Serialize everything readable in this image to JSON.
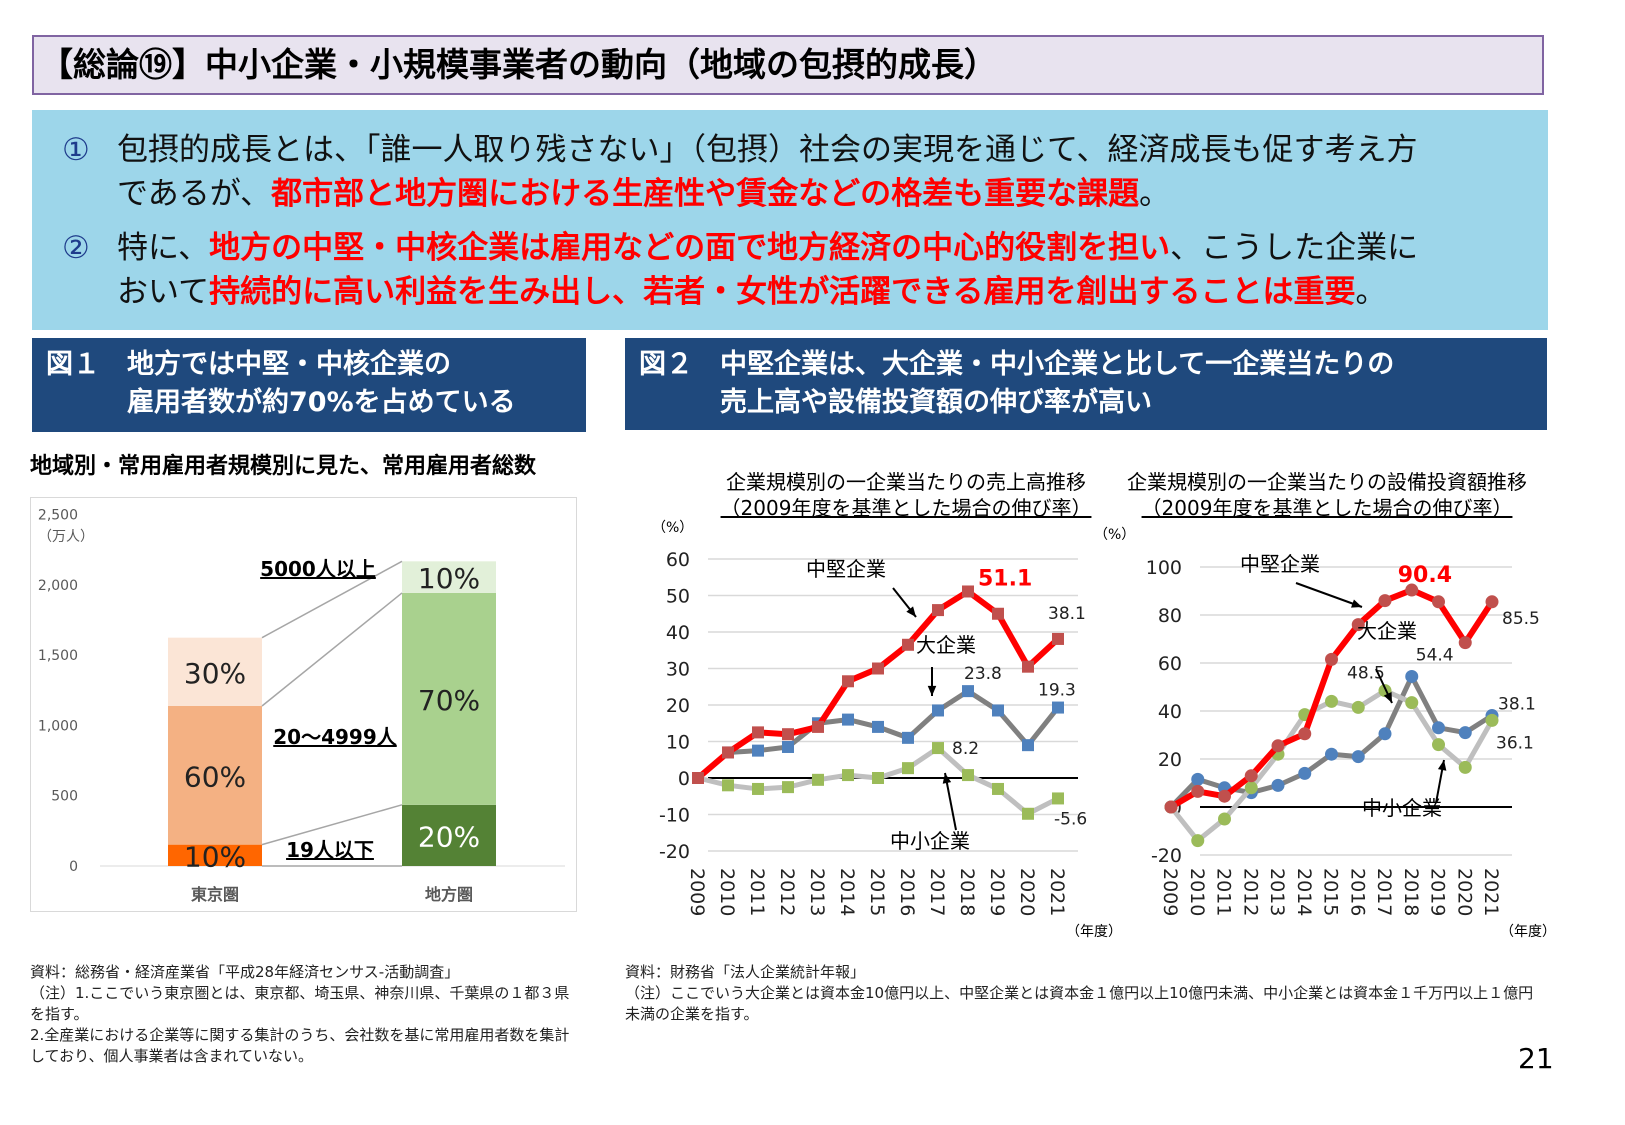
{
  "title": "【総論⑲】中小企業・小規模事業者の動向（地域の包摂的成長）",
  "intro": {
    "p1": {
      "num": "①",
      "line1": "包摂的成長とは、「誰一人取り残さない」（包摂）社会の実現を通じて、経済成長も促す考え方",
      "line2_pre": "であるが、",
      "line2_red": "都市部と地方圏における生産性や賃金などの格差も重要な課題",
      "line2_post": "。"
    },
    "p2": {
      "num": "②",
      "line1_pre": "特に、",
      "line1_red": "地方の中堅・中核企業は雇用などの面で地方経済の中心的役割を担い",
      "line1_post": "、こうした企業に",
      "line2_pre": "おいて",
      "line2_red": "持続的に高い利益を生み出し、若者・女性が活躍できる雇用を創出することは重要",
      "line2_post": "。"
    }
  },
  "fig1": {
    "header": "図１　地方では中堅・中核企業の\n　　　雇用者数が約70%を占めている",
    "subtitle": "地域別・常用雇用者規模別に見た、常用雇用者総数"
  },
  "fig2": {
    "header": "図２　中堅企業は、大企業・中小企業と比して一企業当たりの\n　　　売上高や設備投資額の伸び率が高い"
  },
  "colors": {
    "mid": "#ff0000",
    "mid_marker": "#c0504d",
    "large": "#808080",
    "large_marker": "#4f81bd",
    "sme": "#bfbfbf",
    "sme_marker": "#9bbb59",
    "navy": "#1f497d"
  },
  "chart_data": [
    {
      "type": "bar",
      "stacked": true,
      "ylabel": "（万人）",
      "ylim": [
        0,
        2500
      ],
      "yticks": [
        "0",
        "500",
        "1,000",
        "1,500",
        "2,000",
        "2,500"
      ],
      "categories": [
        "東京圏",
        "地方圏"
      ],
      "series": [
        {
          "name": "19人以下",
          "values": [
            152,
            435
          ],
          "labels": [
            "10%",
            "20%"
          ],
          "colors": [
            "#ff6600",
            "#548235"
          ]
        },
        {
          "name": "20～4999人",
          "values": [
            986,
            1507
          ],
          "labels": [
            "60%",
            "70%"
          ],
          "colors": [
            "#f4b183",
            "#a9d18e"
          ]
        },
        {
          "name": "5000人以上",
          "values": [
            486,
            225
          ],
          "labels": [
            "30%",
            "10%"
          ],
          "colors": [
            "#fbe5d6",
            "#e2f0d9"
          ]
        }
      ]
    },
    {
      "type": "line",
      "title": "企業規模別の一企業当たりの売上高推移",
      "subtitle": "（2009年度を基準とした場合の伸び率）",
      "ylabel": "（%）",
      "xlabel": "（年度）",
      "ylim": [
        -20,
        60
      ],
      "yticks": [
        "-20",
        "-10",
        "0",
        "10",
        "20",
        "30",
        "40",
        "50",
        "60"
      ],
      "x": [
        "2009",
        "2010",
        "2011",
        "2012",
        "2013",
        "2014",
        "2015",
        "2016",
        "2017",
        "2018",
        "2019",
        "2020",
        "2021"
      ],
      "series": [
        {
          "name": "大企業",
          "values": [
            0,
            7,
            7.5,
            8.5,
            15,
            16,
            14,
            11,
            18.5,
            23.8,
            18.5,
            9,
            19.3
          ]
        },
        {
          "name": "中小企業",
          "values": [
            0,
            -2,
            -3,
            -2.5,
            -0.5,
            0.8,
            0,
            2.7,
            8.2,
            0.8,
            -3,
            -9.8,
            -5.6
          ]
        },
        {
          "name": "中堅企業",
          "values": [
            0,
            7,
            12.5,
            12,
            14,
            26.5,
            30,
            36.5,
            46,
            51.1,
            45,
            30.5,
            38.1
          ]
        }
      ],
      "data_labels": {
        "peak_mid": "51.1",
        "end_mid": "38.1",
        "peak_large": "23.8",
        "end_large": "19.3",
        "peak_sme": "8.2",
        "end_sme": "-5.6"
      }
    },
    {
      "type": "line",
      "title": "企業規模別の一企業当たりの設備投資額推移",
      "subtitle": "（2009年度を基準とした場合の伸び率）",
      "ylabel": "（%）",
      "xlabel": "（年度）",
      "ylim": [
        -20,
        100
      ],
      "yticks": [
        "-20",
        "0",
        "20",
        "40",
        "60",
        "80",
        "100"
      ],
      "x": [
        "2009",
        "2010",
        "2011",
        "2012",
        "2013",
        "2014",
        "2015",
        "2016",
        "2017",
        "2018",
        "2019",
        "2020",
        "2021"
      ],
      "series": [
        {
          "name": "大企業",
          "values": [
            0,
            11.5,
            8,
            6,
            9,
            14,
            22,
            21,
            30.5,
            54.4,
            33,
            31,
            38.1
          ]
        },
        {
          "name": "中小企業",
          "values": [
            0,
            -14,
            -5,
            8,
            22,
            38.5,
            44,
            41.5,
            48.5,
            43.5,
            26,
            16.5,
            36.1
          ]
        },
        {
          "name": "中堅企業",
          "values": [
            0,
            6.5,
            4.5,
            13,
            25.5,
            30.5,
            61.5,
            76,
            86,
            90.4,
            85.5,
            68.5,
            85.5
          ]
        }
      ],
      "data_labels": {
        "peak_mid": "90.4",
        "end_mid": "85.5",
        "peak_large": "54.4",
        "end_large": "38.1",
        "peak_sme": "48.5",
        "end_sme": "36.1"
      }
    }
  ],
  "notes": {
    "left": [
      "資料：総務省・経済産業省「平成28年経済センサス‐活動調査」",
      "（注）1.ここでいう東京圏とは、東京都、埼玉県、神奈川県、千葉県の１都３県を指す。",
      "2.全産業における企業等に関する集計のうち、会社数を基に常用雇用者数を集計しており、個人事業者は含まれていない。"
    ],
    "right": [
      "資料：財務省「法人企業統計年報」",
      "（注）ここでいう大企業とは資本金10億円以上、中堅企業とは資本金１億円以上10億円未満、中小企業とは資本金１千万円以上１億円未満の企業を指す。"
    ]
  },
  "page_number": "21"
}
